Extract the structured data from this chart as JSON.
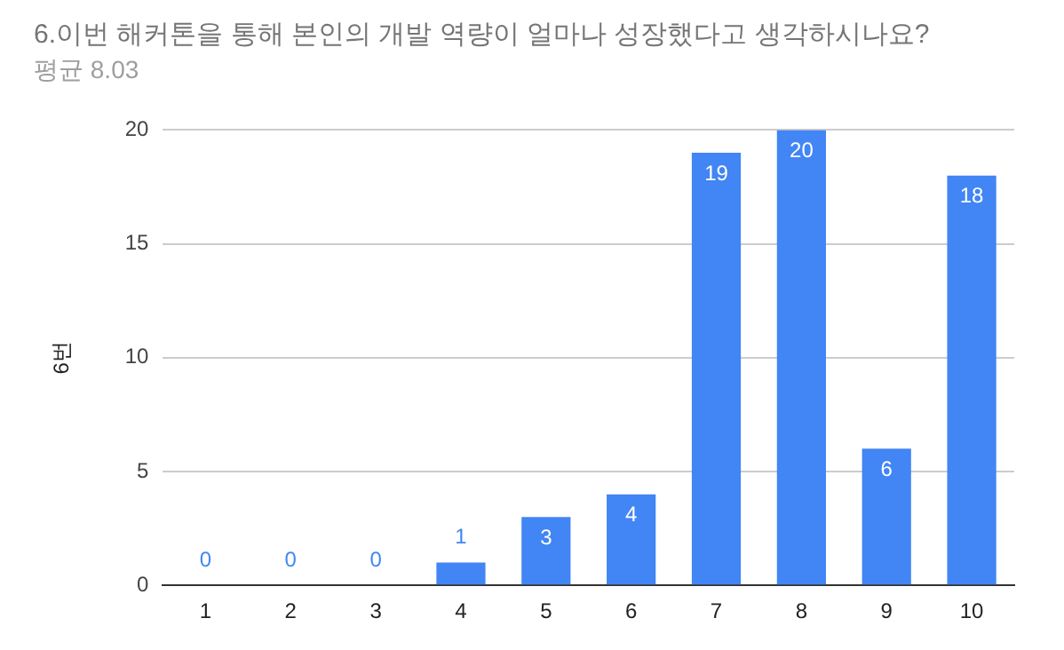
{
  "chart_data": {
    "type": "bar",
    "title": "6.이번 해커톤을 통해 본인의 개발 역량이 얼마나 성장했다고 생각하시나요?",
    "subtitle": "평균 8.03",
    "ylabel": "6번",
    "categories": [
      "1",
      "2",
      "3",
      "4",
      "5",
      "6",
      "7",
      "8",
      "9",
      "10"
    ],
    "values": [
      0,
      0,
      0,
      1,
      3,
      4,
      19,
      20,
      6,
      18
    ],
    "color": "#4285f4",
    "ylim": [
      0,
      20
    ],
    "yticks": [
      0,
      5,
      10,
      15,
      20
    ],
    "grid": "y",
    "data_labels": true
  }
}
